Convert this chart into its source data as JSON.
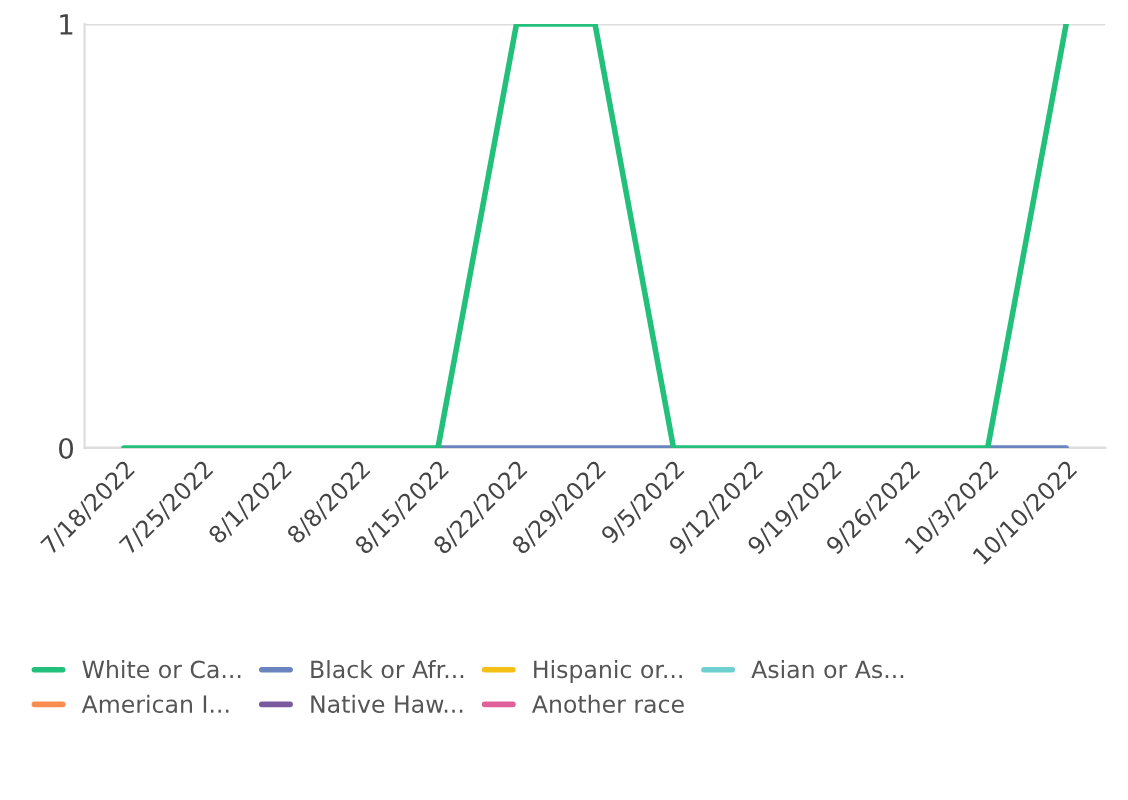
{
  "chart_data": {
    "type": "line",
    "categories": [
      "7/18/2022",
      "7/25/2022",
      "8/1/2022",
      "8/8/2022",
      "8/15/2022",
      "8/22/2022",
      "8/29/2022",
      "9/5/2022",
      "9/12/2022",
      "9/19/2022",
      "9/26/2022",
      "10/3/2022",
      "10/10/2022"
    ],
    "series": [
      {
        "name": "Another race",
        "color": "#e0609a",
        "values": [
          null,
          null,
          null,
          null,
          null,
          null,
          null,
          null,
          null,
          null,
          null,
          null,
          null
        ]
      },
      {
        "name": "Native Haw...",
        "color": "#7a5a9e",
        "values": [
          null,
          null,
          null,
          null,
          null,
          null,
          null,
          null,
          null,
          null,
          null,
          null,
          null
        ]
      },
      {
        "name": "American I...",
        "color": "#f98c4e",
        "values": [
          null,
          null,
          null,
          null,
          null,
          null,
          null,
          null,
          null,
          null,
          null,
          null,
          null
        ]
      },
      {
        "name": "Asian or As...",
        "color": "#6dcfd0",
        "values": [
          null,
          null,
          null,
          null,
          null,
          null,
          null,
          null,
          null,
          null,
          null,
          null,
          null
        ]
      },
      {
        "name": "Hispanic or...",
        "color": "#f5c016",
        "values": [
          null,
          null,
          null,
          null,
          null,
          null,
          null,
          null,
          null,
          null,
          null,
          null,
          null
        ]
      },
      {
        "name": "Black or Afr...",
        "color": "#6a84c0",
        "values": [
          null,
          null,
          null,
          null,
          0,
          0,
          0,
          0,
          null,
          null,
          null,
          0,
          0
        ]
      },
      {
        "name": "White or Ca...",
        "color": "#22c07a",
        "values": [
          0,
          0,
          0,
          0,
          0,
          1,
          1,
          0,
          0,
          0,
          0,
          0,
          1
        ]
      }
    ],
    "ylim": [
      0,
      1
    ],
    "yticks": [
      0,
      1
    ],
    "grid": "y",
    "legend": "bottom",
    "marker": "none",
    "line_style": "solid"
  }
}
